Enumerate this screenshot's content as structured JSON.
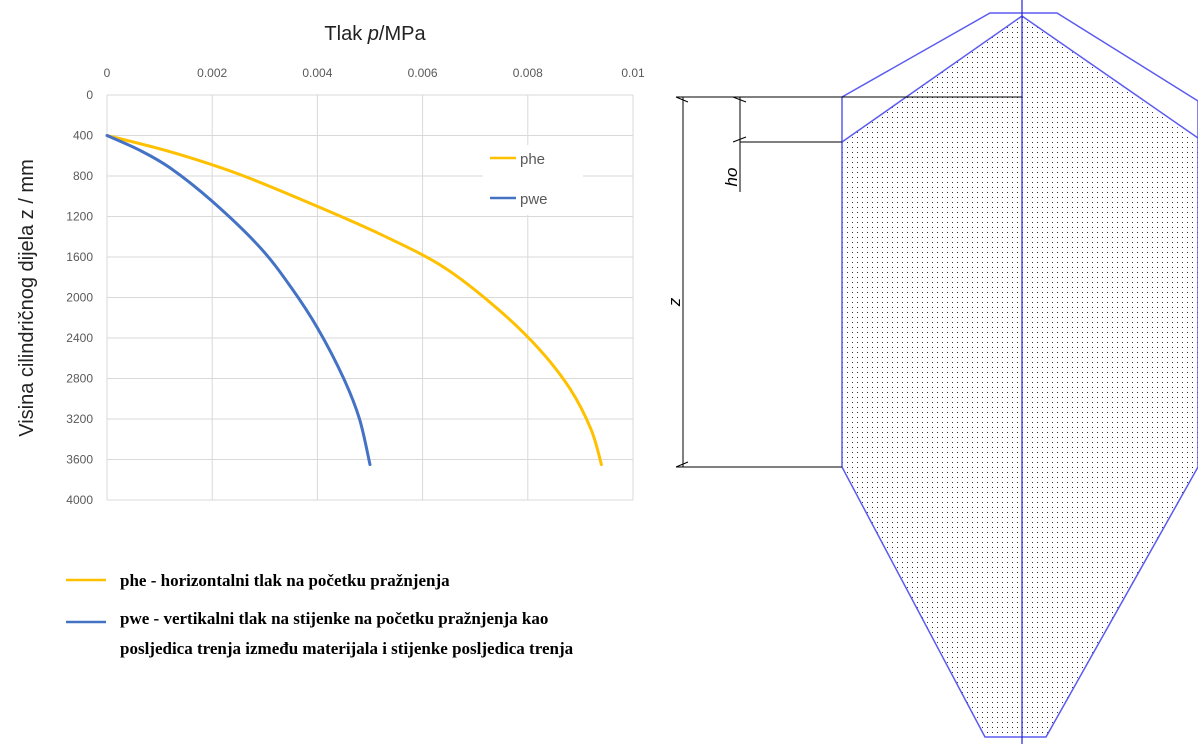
{
  "chart_data": {
    "type": "line",
    "x_axis": {
      "title_prefix": "Tlak ",
      "title_var": "p",
      "title_suffix": "/MPa",
      "position": "top",
      "range": [
        0,
        0.01
      ],
      "tick_labels": [
        "0",
        "0.002",
        "0.004",
        "0.006",
        "0.008",
        "0.01"
      ]
    },
    "y_axis": {
      "title": "Visina cilindričnog dijela z / mm",
      "inverted": true,
      "range": [
        0,
        4000
      ],
      "tick_labels": [
        "0",
        "400",
        "800",
        "1200",
        "1600",
        "2000",
        "2400",
        "2800",
        "3200",
        "3600",
        "4000"
      ]
    },
    "grid": true,
    "legend_position": "top-right",
    "series": [
      {
        "name": "phe",
        "color": "#ffc000",
        "points": [
          [
            0,
            400
          ],
          [
            0.0012,
            560
          ],
          [
            0.0025,
            780
          ],
          [
            0.004,
            1100
          ],
          [
            0.0053,
            1400
          ],
          [
            0.0064,
            1700
          ],
          [
            0.0074,
            2100
          ],
          [
            0.0082,
            2500
          ],
          [
            0.0088,
            2900
          ],
          [
            0.0092,
            3300
          ],
          [
            0.0094,
            3650
          ]
        ]
      },
      {
        "name": "pwe",
        "color": "#4472c4",
        "points": [
          [
            0,
            400
          ],
          [
            0.0006,
            540
          ],
          [
            0.0012,
            720
          ],
          [
            0.002,
            1050
          ],
          [
            0.0029,
            1500
          ],
          [
            0.0035,
            1900
          ],
          [
            0.004,
            2300
          ],
          [
            0.0045,
            2800
          ],
          [
            0.0048,
            3200
          ],
          [
            0.005,
            3650
          ]
        ]
      }
    ]
  },
  "legend_notes": [
    {
      "color": "#ffc000",
      "lines": [
        "phe - horizontalni tlak na početku pražnjenja"
      ]
    },
    {
      "color": "#4472c4",
      "lines": [
        "pwe - vertikalni tlak na stijenke na početku pražnjenja kao",
        "posljedica trenja između materijala i stijenke posljedica trenja"
      ]
    }
  ],
  "diagram": {
    "ho_label": "ho",
    "z_label": "z",
    "outline_color": "#5b5bf0"
  }
}
